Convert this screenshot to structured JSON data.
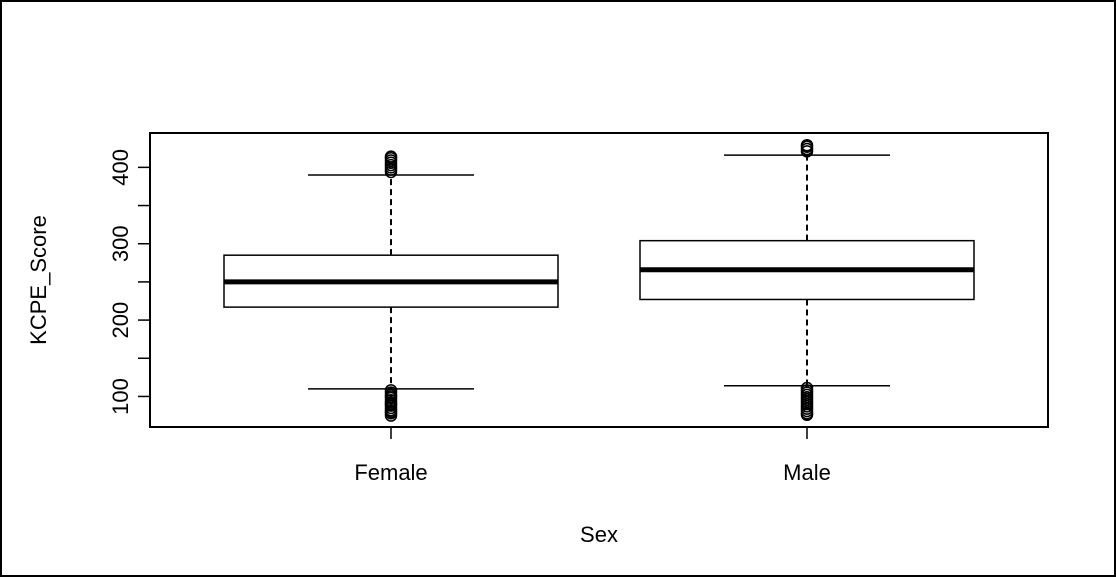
{
  "chart_data": {
    "type": "box",
    "xlabel": "Sex",
    "ylabel": "KCPE_Score",
    "ylim": [
      60,
      445
    ],
    "yticks": [
      100,
      200,
      300,
      400
    ],
    "grid": false,
    "categories": [
      "Female",
      "Male"
    ],
    "boxes": [
      {
        "category": "Female",
        "whisker_low": 110,
        "q1": 217,
        "median": 250,
        "q3": 285,
        "whisker_high": 390,
        "outliers_low": [
          108,
          105,
          102,
          100,
          98,
          95,
          92,
          90,
          88,
          85,
          82,
          80,
          78,
          75
        ],
        "outliers_high": [
          394,
          397,
          400,
          403,
          406,
          409,
          412,
          414
        ]
      },
      {
        "category": "Male",
        "whisker_low": 114,
        "q1": 227,
        "median": 266,
        "q3": 304,
        "whisker_high": 416,
        "outliers_low": [
          111,
          108,
          105,
          102,
          99,
          96,
          93,
          90,
          87,
          84,
          81,
          78,
          76
        ],
        "outliers_high": [
          421,
          424,
          427,
          429
        ]
      }
    ]
  }
}
